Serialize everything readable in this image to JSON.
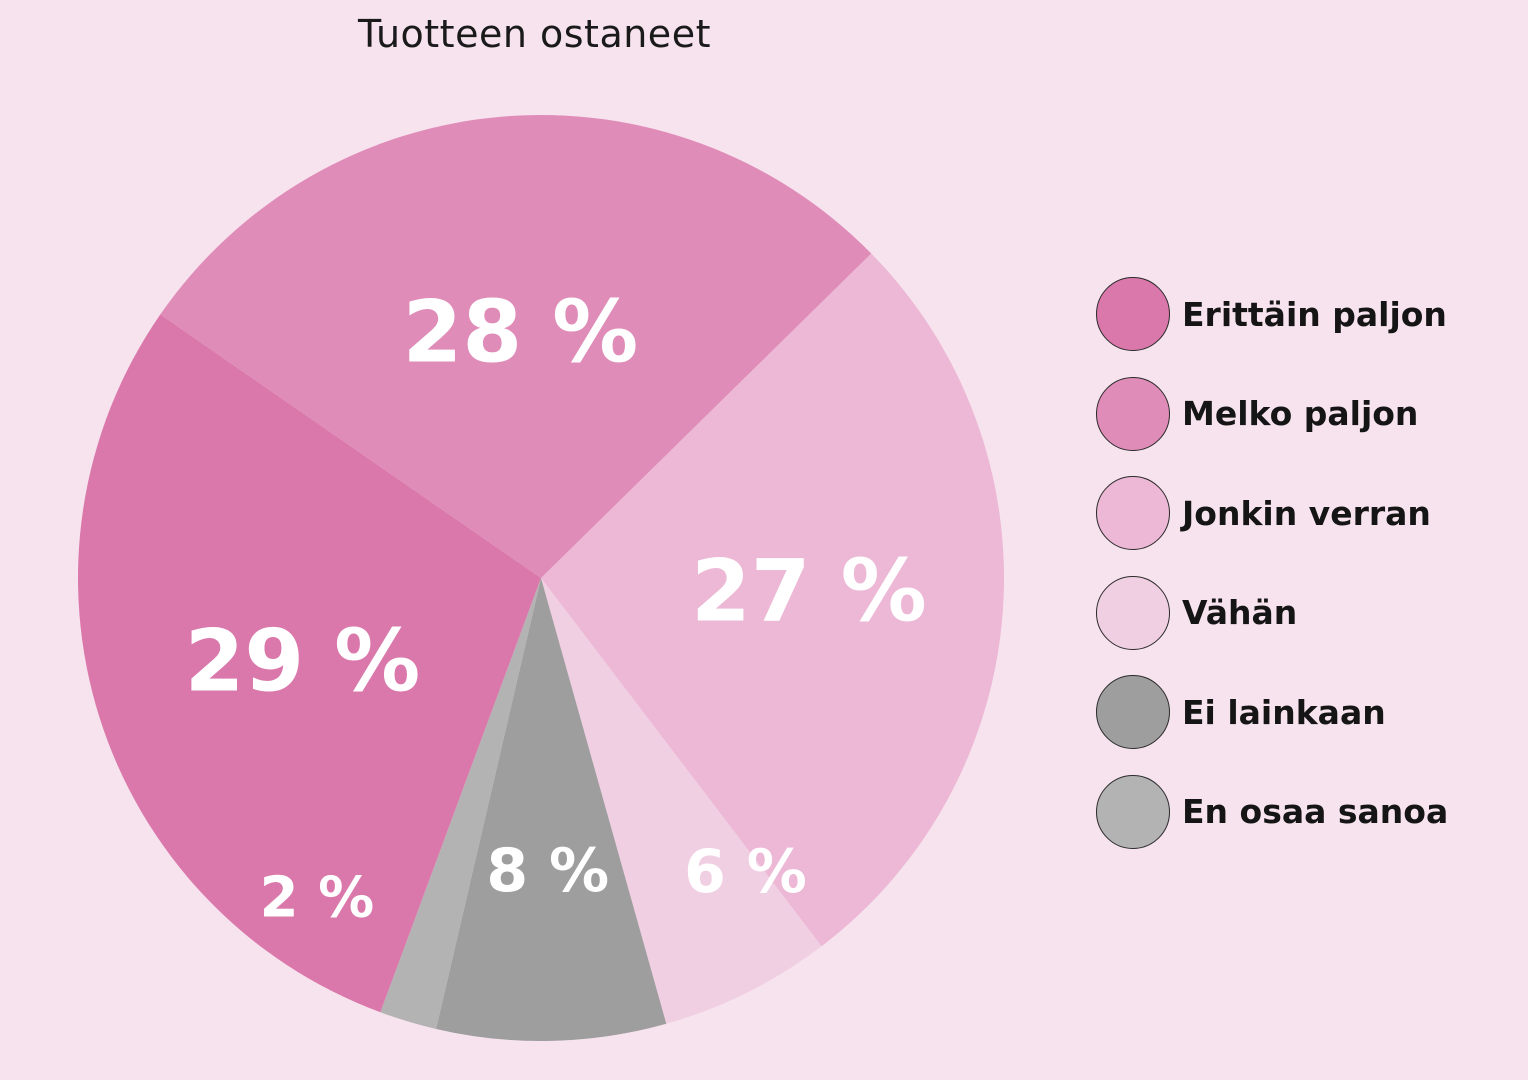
{
  "chart_data": {
    "type": "pie",
    "title": "Tuotteen ostaneet",
    "slices": [
      {
        "name": "Erittäin paljon",
        "value": 29,
        "label": "29 %",
        "color": "#da78ab"
      },
      {
        "name": "Melko paljon",
        "value": 28,
        "label": "28 %",
        "color": "#df8cb8"
      },
      {
        "name": "Jonkin verran",
        "value": 27,
        "label": "27 %",
        "color": "#ecb8d5"
      },
      {
        "name": "Vähän",
        "value": 6,
        "label": "6 %",
        "color": "#f1cfe3"
      },
      {
        "name": "Ei lainkaan",
        "value": 8,
        "label": "8 %",
        "color": "#9e9e9e"
      },
      {
        "name": "En osaa sanoa",
        "value": 2,
        "label": "2 %",
        "color": "#b3b3b3"
      }
    ],
    "legend_position": "right"
  }
}
